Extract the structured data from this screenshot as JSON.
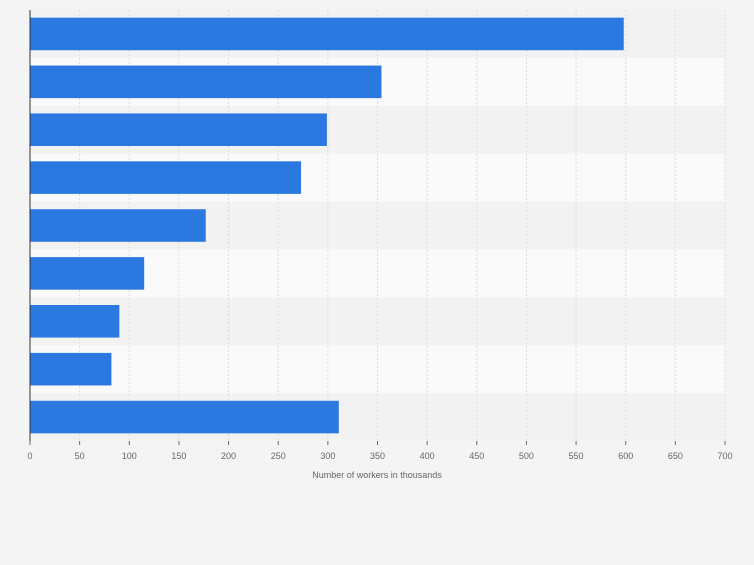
{
  "chart_data": {
    "type": "bar",
    "orientation": "horizontal",
    "categories": [
      "",
      "",
      "",
      "",
      "",
      "",
      "",
      "",
      ""
    ],
    "values": [
      598,
      354,
      299,
      273,
      177,
      115,
      90,
      82,
      311
    ],
    "xlabel": "Number of workers in thousands",
    "ylabel": "",
    "xlim": [
      0,
      700
    ],
    "ticks": [
      "0",
      "50",
      "100",
      "150",
      "200",
      "250",
      "300",
      "350",
      "400",
      "450",
      "500",
      "550",
      "600",
      "650",
      "700"
    ],
    "grid": true,
    "bar_color": "#2a78e0",
    "band_colors": [
      "#f2f2f2",
      "#fafafa"
    ]
  }
}
